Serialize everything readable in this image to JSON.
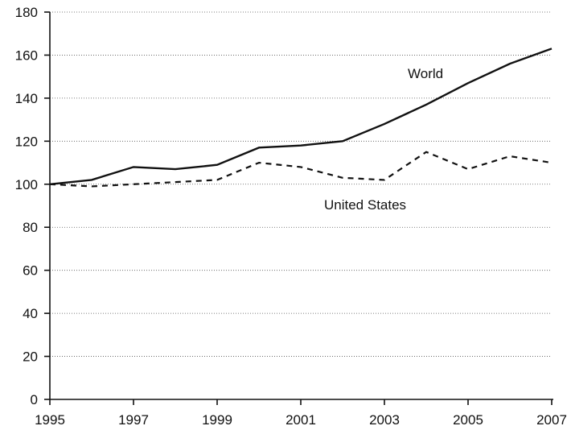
{
  "chart_data": {
    "type": "line",
    "title": "",
    "xlabel": "",
    "ylabel": "",
    "xlim": [
      1995,
      2007
    ],
    "ylim": [
      0,
      180
    ],
    "x_ticks": [
      "1995",
      "1997",
      "1999",
      "2001",
      "2003",
      "2005",
      "2007"
    ],
    "y_ticks": [
      "0",
      "20",
      "40",
      "60",
      "80",
      "100",
      "120",
      "140",
      "160",
      "180"
    ],
    "grid": "horizontal dotted",
    "legend": "none; series labeled inline",
    "x": [
      1995,
      1996,
      1997,
      1998,
      1999,
      2000,
      2001,
      2002,
      2003,
      2004,
      2005,
      2006,
      2007
    ],
    "series": [
      {
        "name": "World",
        "style": "solid",
        "values": [
          100,
          102,
          108,
          107,
          109,
          117,
          118,
          120,
          128,
          137,
          147,
          156,
          163
        ]
      },
      {
        "name": "United States",
        "style": "dashed",
        "values": [
          100,
          99,
          100,
          101,
          102,
          110,
          108,
          103,
          102,
          115,
          107,
          113,
          110
        ]
      }
    ]
  },
  "colors": {
    "line": "#111111",
    "grid": "#555555",
    "background": "#ffffff"
  }
}
